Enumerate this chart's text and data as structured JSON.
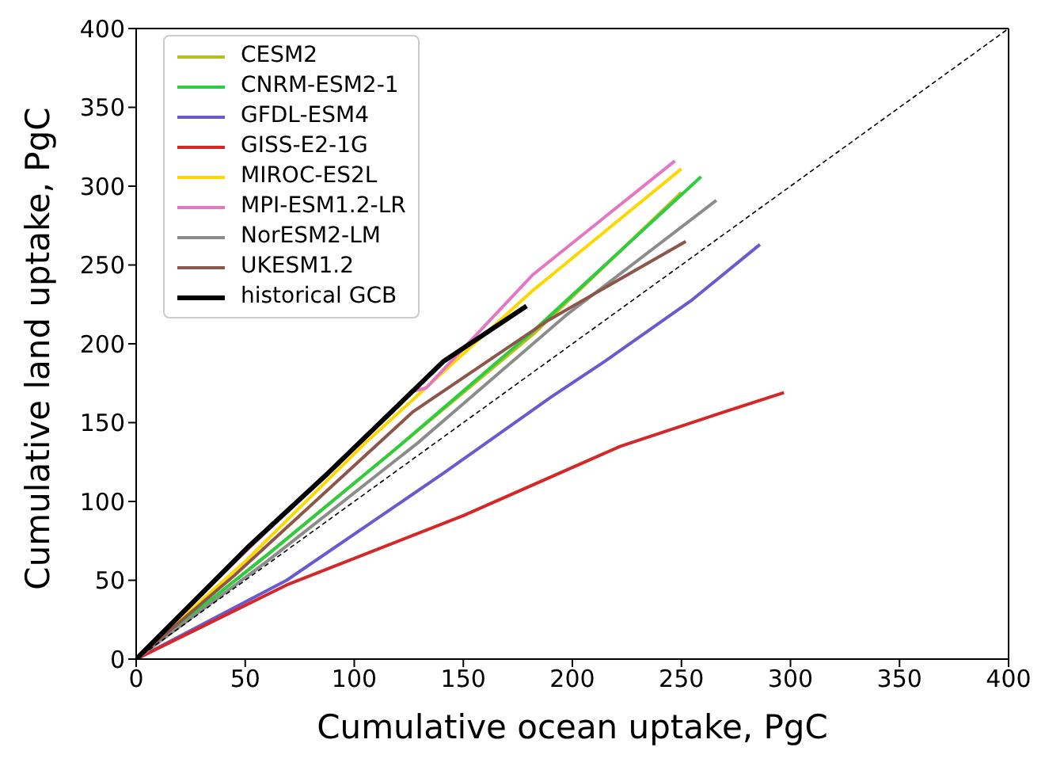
{
  "chart_data": {
    "type": "line",
    "xlabel": "Cumulative ocean uptake, PgC",
    "ylabel": "Cumulative land uptake, PgC",
    "xlim": [
      0,
      400
    ],
    "ylim": [
      0,
      400
    ],
    "xticks": [
      0,
      50,
      100,
      150,
      200,
      250,
      300,
      350,
      400
    ],
    "yticks": [
      0,
      50,
      100,
      150,
      200,
      250,
      300,
      350,
      400
    ],
    "grid": false,
    "legend": "top left",
    "marker": "none",
    "series": [
      {
        "name": "CESM2",
        "color": "#bcbd22",
        "x": [
          0,
          60,
          117,
          182,
          250
        ],
        "values": [
          0,
          66,
          131,
          206,
          296
        ]
      },
      {
        "name": "CNRM-ESM2-1",
        "color": "#2ecc40",
        "x": [
          0,
          60,
          117,
          182,
          259
        ],
        "values": [
          0,
          66,
          131,
          208,
          306
        ]
      },
      {
        "name": "GFDL-ESM4",
        "color": "#6a5acd",
        "x": [
          0,
          69,
          141,
          190,
          215,
          255,
          286
        ],
        "values": [
          0,
          50,
          118,
          166,
          189,
          228,
          263
        ]
      },
      {
        "name": "GISS-E2-1G",
        "color": "#d62728",
        "x": [
          0,
          69,
          150,
          222,
          270,
          297
        ],
        "values": [
          0,
          47,
          91,
          135,
          157,
          169
        ]
      },
      {
        "name": "MIROC-ES2L",
        "color": "#ffd700",
        "x": [
          0,
          50,
          105,
          182,
          250
        ],
        "values": [
          0,
          62,
          137,
          234,
          311
        ]
      },
      {
        "name": "MPI-ESM1.2-LR",
        "color": "#e377c2",
        "x": [
          0,
          50,
          100,
          127,
          133,
          182,
          247
        ],
        "values": [
          0,
          68,
          134,
          170,
          172,
          244,
          316
        ]
      },
      {
        "name": "NorESM2-LM",
        "color": "#8c8c8c",
        "x": [
          0,
          60,
          129,
          197,
          266
        ],
        "values": [
          0,
          62,
          137,
          218,
          291
        ]
      },
      {
        "name": "UKESM1.2",
        "color": "#8c564b",
        "x": [
          0,
          45,
          127,
          189,
          252
        ],
        "values": [
          0,
          53,
          157,
          215,
          265
        ]
      },
      {
        "name": "historical GCB",
        "color": "#000000",
        "x": [
          0,
          52,
          88,
          141,
          179
        ],
        "values": [
          0,
          72,
          118,
          189,
          224
        ]
      },
      {
        "color": "#000000",
        "line_style": "dashed",
        "x": [
          0,
          400
        ],
        "values": [
          0,
          400
        ]
      }
    ]
  }
}
